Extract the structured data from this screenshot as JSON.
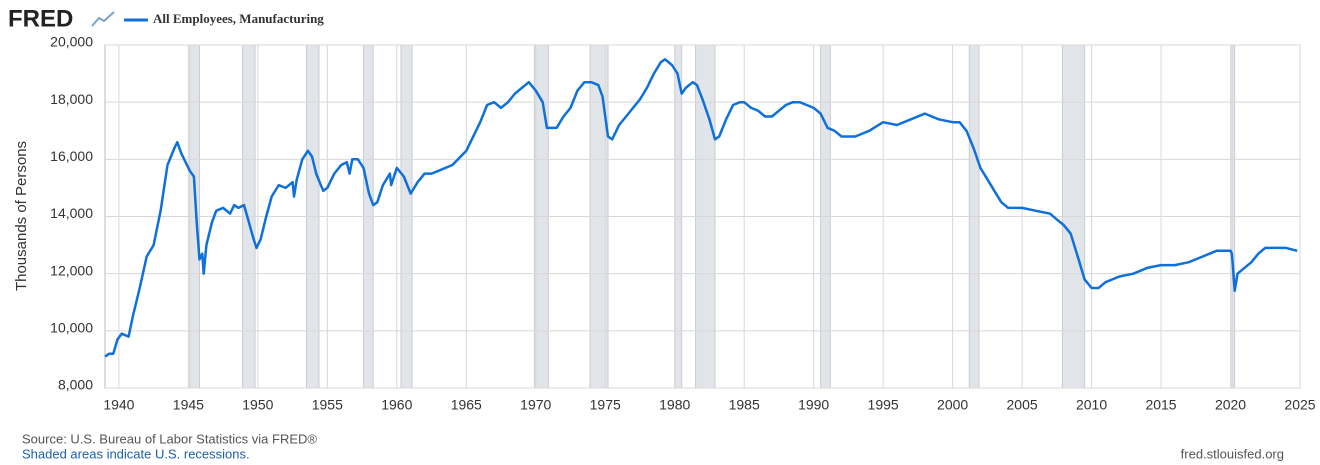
{
  "chart_data": {
    "type": "line",
    "brand": "FRED",
    "y_label": "Thousands of Persons",
    "source": "Source: U.S. Bureau of Labor Statistics via FRED®",
    "note": "Shaded areas indicate U.S. recessions.",
    "url": "fred.stlouisfed.org",
    "xlim": [
      1939,
      2025
    ],
    "xticks": [
      1940,
      1945,
      1950,
      1955,
      1960,
      1965,
      1970,
      1975,
      1980,
      1985,
      1990,
      1995,
      2000,
      2005,
      2010,
      2015,
      2020,
      2025
    ],
    "ylim": [
      8000,
      20000
    ],
    "yticks": [
      {
        "value": 8000,
        "label": "8,000"
      },
      {
        "value": 10000,
        "label": "10,000"
      },
      {
        "value": 12000,
        "label": "12,000"
      },
      {
        "value": 14000,
        "label": "14,000"
      },
      {
        "value": 16000,
        "label": "16,000"
      },
      {
        "value": 18000,
        "label": "18,000"
      },
      {
        "value": 20000,
        "label": "20,000"
      }
    ],
    "grid": true,
    "recession_color": "#e1e4e8",
    "recessions": [
      [
        1945.1,
        1945.8
      ],
      [
        1948.9,
        1949.8
      ],
      [
        1953.5,
        1954.4
      ],
      [
        1957.6,
        1958.3
      ],
      [
        1960.3,
        1961.1
      ],
      [
        1969.9,
        1970.9
      ],
      [
        1973.9,
        1975.2
      ],
      [
        1980.0,
        1980.5
      ],
      [
        1981.5,
        1982.9
      ],
      [
        1990.5,
        1991.2
      ],
      [
        2001.2,
        2001.9
      ],
      [
        2007.9,
        2009.5
      ],
      [
        2020.1,
        2020.3
      ]
    ],
    "x": [
      1939.0,
      1939.3,
      1939.6,
      1939.9,
      1940.2,
      1940.7,
      1941.0,
      1941.5,
      1942.0,
      1942.5,
      1943.0,
      1943.5,
      1944.0,
      1944.2,
      1944.5,
      1944.8,
      1945.1,
      1945.4,
      1945.6,
      1945.8,
      1946.0,
      1946.1,
      1946.3,
      1946.7,
      1947.0,
      1947.5,
      1948.0,
      1948.3,
      1948.6,
      1949.0,
      1949.3,
      1949.7,
      1949.9,
      1950.2,
      1950.6,
      1951.0,
      1951.5,
      1952.0,
      1952.5,
      1952.6,
      1952.8,
      1953.2,
      1953.6,
      1953.9,
      1954.2,
      1954.7,
      1955.0,
      1955.5,
      1956.0,
      1956.4,
      1956.6,
      1956.8,
      1957.2,
      1957.6,
      1958.0,
      1958.3,
      1958.6,
      1959.0,
      1959.5,
      1959.6,
      1960.0,
      1960.5,
      1961.0,
      1961.5,
      1962.0,
      1962.5,
      1963.0,
      1964.0,
      1965.0,
      1966.0,
      1966.5,
      1967.0,
      1967.5,
      1968.0,
      1968.5,
      1969.5,
      1970.0,
      1970.5,
      1970.8,
      1971.5,
      1972.0,
      1972.5,
      1973.0,
      1973.5,
      1974.0,
      1974.5,
      1974.8,
      1975.2,
      1975.5,
      1976.0,
      1976.5,
      1977.0,
      1977.5,
      1978.0,
      1978.5,
      1979.0,
      1979.3,
      1979.8,
      1980.2,
      1980.5,
      1980.8,
      1981.3,
      1981.6,
      1982.0,
      1982.5,
      1982.9,
      1983.2,
      1983.7,
      1984.2,
      1984.7,
      1985.0,
      1985.5,
      1986.0,
      1986.5,
      1987.0,
      1987.5,
      1988.0,
      1988.5,
      1989.0,
      1989.5,
      1990.0,
      1990.5,
      1991.0,
      1991.5,
      1992.0,
      1992.5,
      1993.0,
      1993.5,
      1994.0,
      1995.0,
      1996.0,
      1997.0,
      1998.0,
      1998.5,
      1999.0,
      2000.0,
      2000.5,
      2001.0,
      2001.5,
      2002.0,
      2002.5,
      2003.0,
      2003.5,
      2004.0,
      2005.0,
      2006.0,
      2007.0,
      2007.5,
      2008.0,
      2008.5,
      2009.0,
      2009.5,
      2010.0,
      2010.5,
      2011.0,
      2012.0,
      2013.0,
      2014.0,
      2015.0,
      2016.0,
      2017.0,
      2018.0,
      2019.0,
      2020.0,
      2020.1,
      2020.3,
      2020.5,
      2021.0,
      2021.5,
      2022.0,
      2022.5,
      2023.0,
      2024.0,
      2024.8
    ],
    "series": [
      {
        "name": "All Employees, Manufacturing",
        "color": "#0f70da",
        "values": [
          9100,
          9200,
          9200,
          9700,
          9900,
          9800,
          10500,
          11500,
          12600,
          13000,
          14200,
          15800,
          16400,
          16600,
          16200,
          15900,
          15600,
          15400,
          13800,
          12500,
          12700,
          12000,
          13000,
          13800,
          14200,
          14300,
          14100,
          14400,
          14300,
          14400,
          13900,
          13200,
          12900,
          13200,
          14000,
          14700,
          15100,
          15000,
          15200,
          14700,
          15300,
          16000,
          16300,
          16100,
          15500,
          14900,
          15000,
          15500,
          15800,
          15900,
          15500,
          16000,
          16000,
          15700,
          14800,
          14400,
          14500,
          15100,
          15500,
          15100,
          15700,
          15400,
          14800,
          15200,
          15500,
          15500,
          15600,
          15800,
          16300,
          17300,
          17900,
          18000,
          17800,
          18000,
          18300,
          18700,
          18400,
          18000,
          17100,
          17100,
          17500,
          17800,
          18400,
          18700,
          18700,
          18600,
          18200,
          16800,
          16700,
          17200,
          17500,
          17800,
          18100,
          18500,
          19000,
          19400,
          19500,
          19300,
          19000,
          18300,
          18500,
          18700,
          18600,
          18100,
          17400,
          16700,
          16800,
          17400,
          17900,
          18000,
          18000,
          17800,
          17700,
          17500,
          17500,
          17700,
          17900,
          18000,
          18000,
          17900,
          17800,
          17600,
          17100,
          17000,
          16800,
          16800,
          16800,
          16900,
          17000,
          17300,
          17200,
          17400,
          17600,
          17500,
          17400,
          17300,
          17300,
          17000,
          16400,
          15700,
          15300,
          14900,
          14500,
          14300,
          14300,
          14200,
          14100,
          13900,
          13700,
          13400,
          12600,
          11800,
          11500,
          11500,
          11700,
          11900,
          12000,
          12200,
          12300,
          12300,
          12400,
          12600,
          12800,
          12800,
          12700,
          11400,
          12000,
          12200,
          12400,
          12700,
          12900,
          12900,
          12900,
          12800
        ]
      }
    ]
  }
}
